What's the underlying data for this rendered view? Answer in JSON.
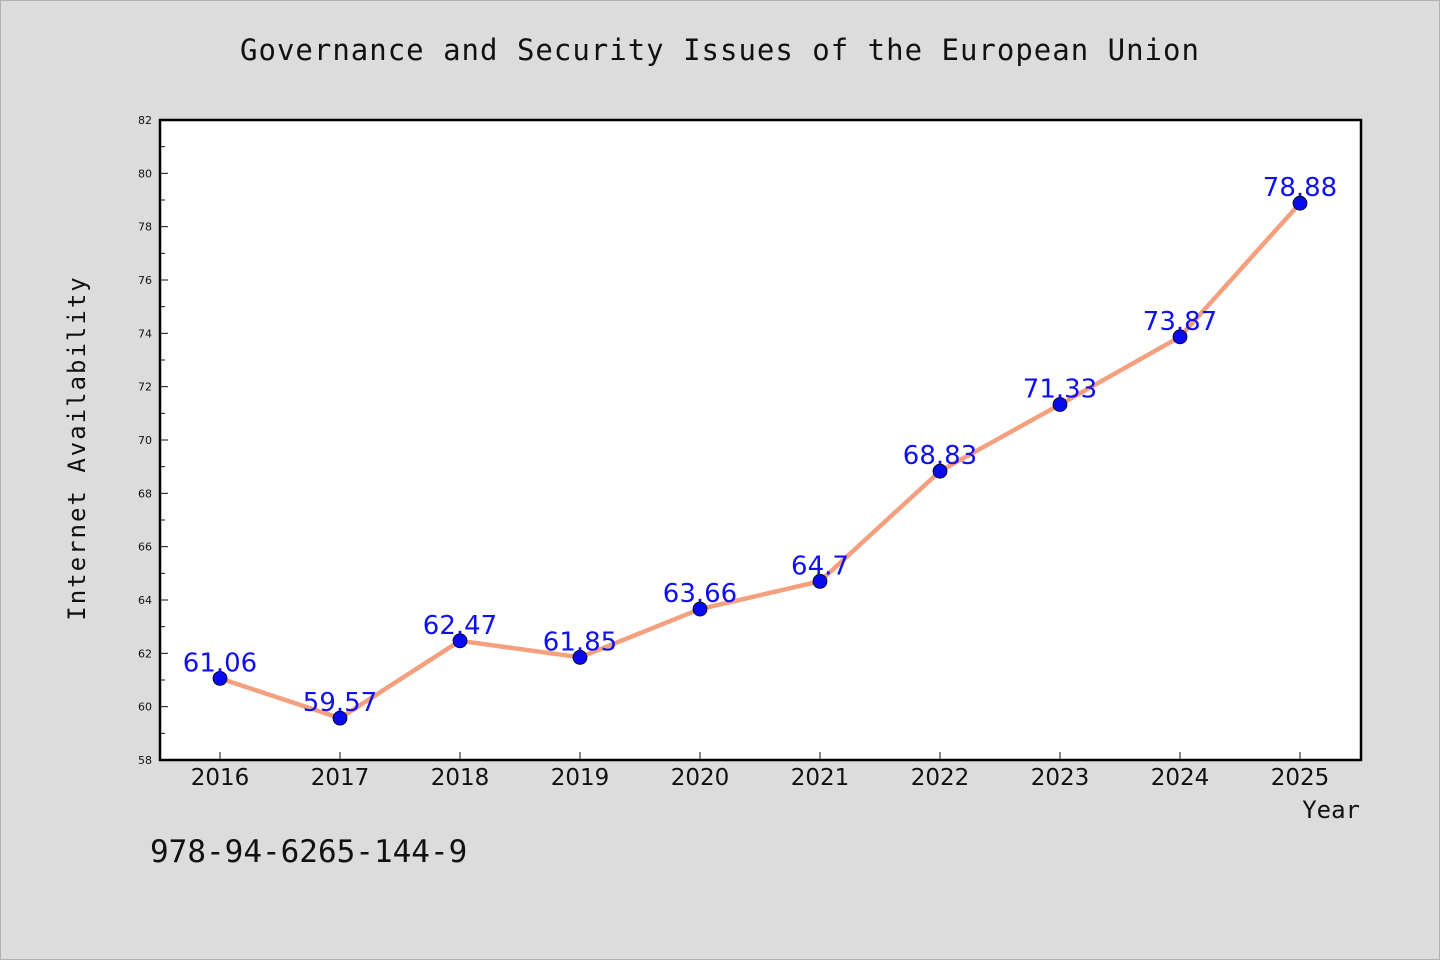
{
  "chart_data": {
    "type": "line",
    "title": "Governance and Security Issues of the European Union",
    "xlabel": "Year",
    "ylabel": "Internet Availability",
    "categories": [
      "2016",
      "2017",
      "2018",
      "2019",
      "2020",
      "2021",
      "2022",
      "2023",
      "2024",
      "2025"
    ],
    "series": [
      {
        "values": [
          61.06,
          59.57,
          62.47,
          61.85,
          63.66,
          64.7,
          68.83,
          71.33,
          73.87,
          78.88
        ],
        "labels": [
          "61.06",
          "59.57",
          "62.47",
          "61.85",
          "63.66",
          "64.7",
          "68.83",
          "71.33",
          "73.87",
          "78.88"
        ],
        "line_color": "#f4a07e",
        "marker_color": "#0a0af0"
      }
    ],
    "ylim": [
      58,
      82
    ],
    "yticks": [
      "58",
      "60",
      "62",
      "64",
      "66",
      "68",
      "70",
      "72",
      "74",
      "76",
      "78",
      "80",
      "82"
    ],
    "grid": false,
    "legend": "none"
  },
  "annotation": "978-94-6265-144-9"
}
